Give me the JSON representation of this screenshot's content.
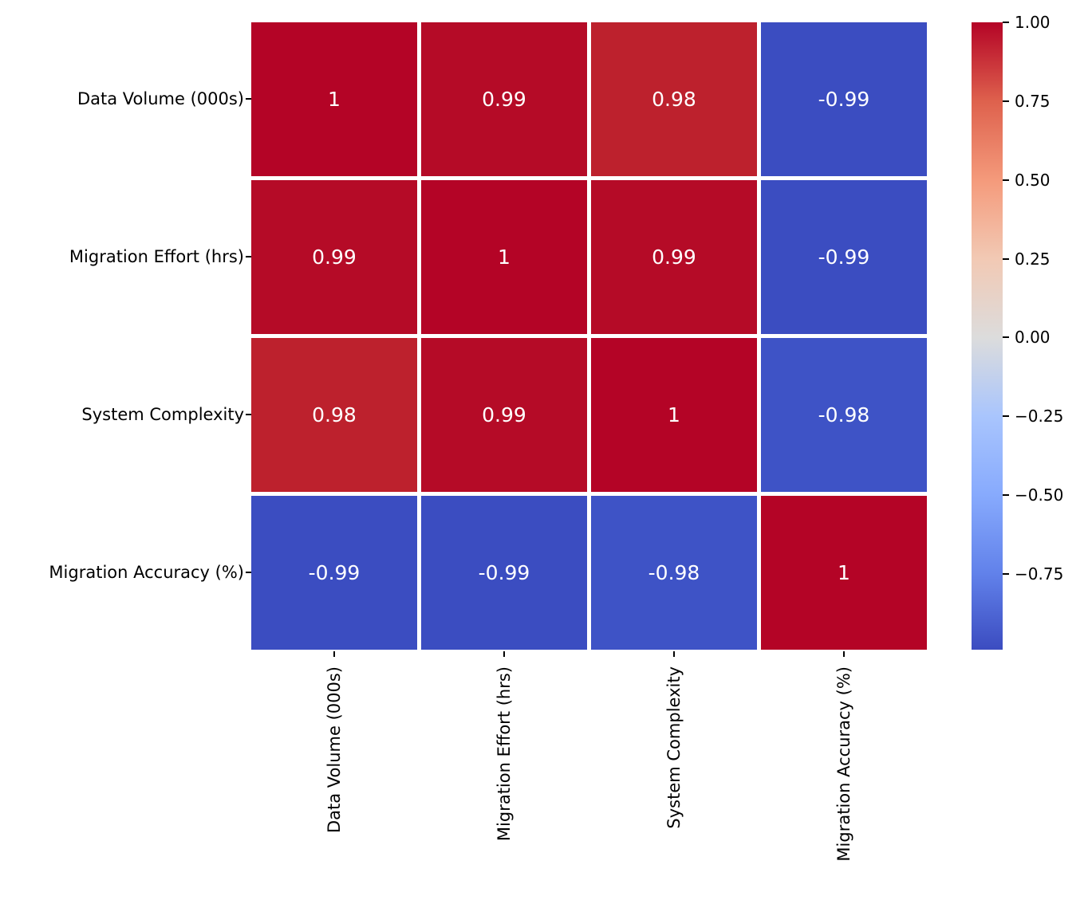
{
  "figure": {
    "background_color": "#ffffff",
    "text_color": "#000000"
  },
  "chart_data": {
    "type": "heatmap",
    "title": "",
    "xlabel": "",
    "ylabel": "",
    "categories": [
      "Data Volume (000s)",
      "Migration Effort (hrs)",
      "System Complexity",
      "Migration Accuracy (%)"
    ],
    "matrix": [
      [
        1,
        0.99,
        0.98,
        -0.99
      ],
      [
        0.99,
        1,
        0.99,
        -0.99
      ],
      [
        0.98,
        0.99,
        1,
        -0.98
      ],
      [
        -0.99,
        -0.99,
        -0.98,
        1
      ]
    ],
    "cell_labels": [
      [
        "1",
        "0.99",
        "0.98",
        "-0.99"
      ],
      [
        "0.99",
        "1",
        "0.99",
        "-0.99"
      ],
      [
        "0.98",
        "0.99",
        "1",
        "-0.98"
      ],
      [
        "-0.99",
        "-0.99",
        "-0.98",
        "1"
      ]
    ],
    "colormap": "coolwarm",
    "vmin": -0.99,
    "vmax": 1.0,
    "grid_on": false,
    "gridline_color": "#ffffff",
    "annotation_text_color": "#ffffff",
    "value_colors": {
      "1": "#b40426",
      "0.99": "#b50b27",
      "0.98": "#bd212d",
      "-0.98": "#3e53c6",
      "-0.99": "#3b4dc1"
    },
    "colorbar": {
      "position": "right",
      "ticks": [
        "1.00",
        "0.75",
        "0.50",
        "0.25",
        "0.00",
        "−0.25",
        "−0.50",
        "−0.75"
      ],
      "tick_values": [
        1.0,
        0.75,
        0.5,
        0.25,
        0.0,
        -0.25,
        -0.5,
        -0.75
      ],
      "gradient": [
        {
          "pos": 0.0,
          "color": "#b40426"
        },
        {
          "pos": 0.1256,
          "color": "#de614d"
        },
        {
          "pos": 0.2513,
          "color": "#f49a7b"
        },
        {
          "pos": 0.3769,
          "color": "#f2c9b4"
        },
        {
          "pos": 0.5025,
          "color": "#dcdcdc"
        },
        {
          "pos": 0.6281,
          "color": "#a9c5fd"
        },
        {
          "pos": 0.7538,
          "color": "#87aafd"
        },
        {
          "pos": 0.8794,
          "color": "#6181ea"
        },
        {
          "pos": 1.0,
          "color": "#3b4cc0"
        }
      ]
    }
  }
}
